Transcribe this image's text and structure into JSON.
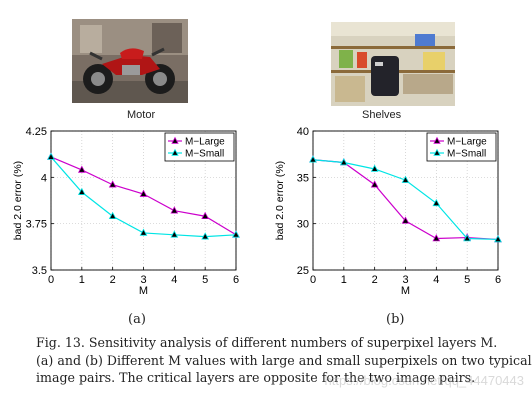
{
  "chart_data": [
    {
      "type": "line",
      "title": "Motor",
      "xlabel": "M",
      "ylabel": "bad 2.0 error (%)",
      "x": [
        0,
        1,
        2,
        3,
        4,
        5,
        6
      ],
      "xlim": [
        0,
        6
      ],
      "ylim": [
        3.5,
        4.25
      ],
      "yticks": [
        3.5,
        3.75,
        4,
        4.25
      ],
      "ytick_labels": [
        "3.5",
        "3.75",
        "4",
        "4.25"
      ],
      "xtick_labels": [
        "0",
        "1",
        "2",
        "3",
        "4",
        "5",
        "6"
      ],
      "legend_position": "top-right",
      "series": [
        {
          "name": "M−Large",
          "color": "#cc00cc",
          "marker": "triangle-up",
          "values": [
            4.11,
            4.04,
            3.96,
            3.91,
            3.82,
            3.79,
            3.69
          ]
        },
        {
          "name": "M−Small",
          "color": "#00e5e5",
          "marker": "triangle-up",
          "values": [
            4.11,
            3.92,
            3.79,
            3.7,
            3.69,
            3.68,
            3.69
          ]
        }
      ],
      "sublabel": "(a)"
    },
    {
      "type": "line",
      "title": "Shelves",
      "xlabel": "M",
      "ylabel": "bad 2.0 error (%)",
      "x": [
        0,
        1,
        2,
        3,
        4,
        5,
        6
      ],
      "xlim": [
        0,
        6
      ],
      "ylim": [
        25,
        40
      ],
      "yticks": [
        25,
        30,
        35,
        40
      ],
      "ytick_labels": [
        "25",
        "30",
        "35",
        "40"
      ],
      "xtick_labels": [
        "0",
        "1",
        "2",
        "3",
        "4",
        "5",
        "6"
      ],
      "legend_position": "top-right",
      "series": [
        {
          "name": "M−Large",
          "color": "#cc00cc",
          "marker": "triangle-up",
          "values": [
            36.9,
            36.6,
            34.2,
            30.3,
            28.4,
            28.5,
            28.3
          ]
        },
        {
          "name": "M−Small",
          "color": "#00e5e5",
          "marker": "triangle-up",
          "values": [
            36.9,
            36.6,
            35.9,
            34.7,
            32.2,
            28.4,
            28.3
          ]
        }
      ],
      "sublabel": "(b)"
    }
  ],
  "caption": {
    "lines": [
      "Fig. 13.   Sensitivity analysis of different numbers of superpixel layers M.",
      "(a) and (b) Different M values with large and small superpixels on two typical",
      "image pairs. The critical layers are opposite for the two image pairs."
    ]
  },
  "watermark": "https://blog.csdn.net/qq_44470443"
}
